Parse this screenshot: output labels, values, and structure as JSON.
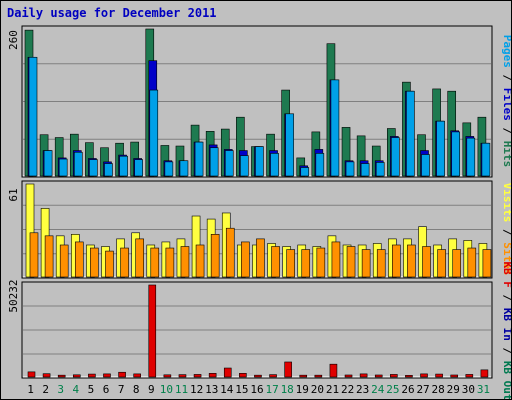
{
  "title": "Daily usage for December 2011",
  "colors": {
    "hits": "#1e7a50",
    "files": "#0000c8",
    "pages": "#00a0e8",
    "visits": "#ffff40",
    "sites": "#ff9000",
    "kb_in": "#0000a0",
    "kb_out": "#007a50",
    "kb_f": "#e00000",
    "background": "#c0c0c0",
    "weekend_label": "#00804a",
    "weekday_label": "#000000"
  },
  "chart_data": [
    {
      "type": "bar",
      "panel": "top",
      "ymax_label": "260",
      "ylim": [
        0,
        260
      ],
      "right_labels": [
        "Pages",
        "Files",
        "Hits"
      ],
      "categories": [
        "1",
        "2",
        "3",
        "4",
        "5",
        "6",
        "7",
        "8",
        "9",
        "10",
        "11",
        "12",
        "13",
        "14",
        "15",
        "16",
        "17",
        "18",
        "19",
        "20",
        "21",
        "22",
        "23",
        "24",
        "25",
        "26",
        "27",
        "28",
        "29",
        "30",
        "31"
      ],
      "weekend_days": [
        "3",
        "4",
        "10",
        "11",
        "17",
        "18",
        "24",
        "25",
        "31"
      ],
      "series": [
        {
          "name": "Hits",
          "values": [
            258,
            73,
            68,
            74,
            59,
            50,
            58,
            60,
            260,
            54,
            53,
            90,
            79,
            83,
            104,
            52,
            74,
            152,
            32,
            78,
            234,
            86,
            71,
            53,
            84,
            166,
            73,
            154,
            150,
            94,
            104
          ]
        },
        {
          "name": "Files",
          "values": [
            210,
            45,
            32,
            45,
            31,
            25,
            37,
            31,
            204,
            27,
            27,
            60,
            55,
            47,
            45,
            52,
            45,
            110,
            18,
            47,
            170,
            27,
            27,
            27,
            70,
            150,
            45,
            97,
            80,
            70,
            58
          ]
        },
        {
          "name": "Pages",
          "values": [
            210,
            45,
            30,
            42,
            29,
            22,
            35,
            29,
            152,
            25,
            27,
            60,
            50,
            45,
            36,
            52,
            40,
            110,
            15,
            40,
            170,
            25,
            22,
            24,
            68,
            150,
            38,
            97,
            78,
            67,
            58
          ]
        }
      ]
    },
    {
      "type": "bar",
      "panel": "middle",
      "ymax_label": "61",
      "ylim": [
        0,
        61
      ],
      "right_labels": [
        "Visits",
        "Sites"
      ],
      "series": [
        {
          "name": "Visits",
          "values": [
            61,
            45,
            27,
            28,
            21,
            20,
            25,
            29,
            21,
            23,
            25,
            40,
            38,
            42,
            21,
            21,
            22,
            20,
            21,
            20,
            27,
            21,
            21,
            22,
            25,
            25,
            33,
            21,
            25,
            24,
            22
          ]
        },
        {
          "name": "Sites",
          "values": [
            29,
            27,
            21,
            23,
            19,
            17,
            19,
            25,
            19,
            19,
            20,
            21,
            28,
            32,
            23,
            25,
            20,
            18,
            18,
            19,
            23,
            20,
            18,
            18,
            21,
            21,
            20,
            18,
            18,
            19,
            18
          ]
        }
      ]
    },
    {
      "type": "bar",
      "panel": "bottom",
      "ymax_label": "50232",
      "ylim": [
        0,
        50232
      ],
      "right_labels": [
        "KB F",
        "KB In",
        "KB Out"
      ],
      "series": [
        {
          "name": "KB F",
          "values": [
            2800,
            1800,
            1000,
            1200,
            1600,
            1700,
            2600,
            1700,
            50232,
            1200,
            1300,
            1400,
            2000,
            4900,
            2000,
            1000,
            1300,
            8200,
            1000,
            1000,
            7000,
            1100,
            1700,
            1100,
            1400,
            900,
            1700,
            1600,
            1100,
            1400,
            3900
          ]
        }
      ]
    }
  ]
}
